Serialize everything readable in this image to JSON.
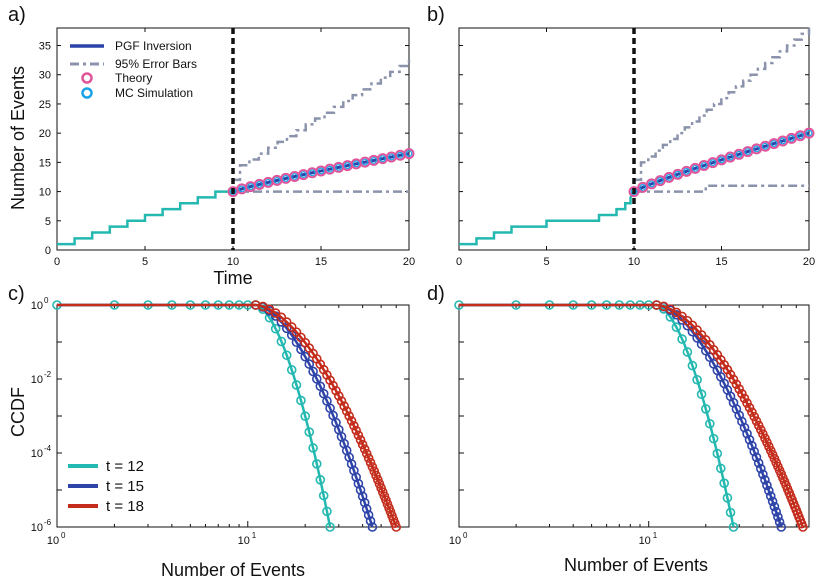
{
  "chart_data": [
    {
      "type": "line",
      "panel": "a)",
      "xlabel": "Time",
      "ylabel": "Number of Events",
      "xlim": [
        0,
        20
      ],
      "ylim": [
        0,
        38
      ],
      "xticks": [
        "0",
        "5",
        "10",
        "15",
        "20"
      ],
      "yticks": [
        "0",
        "5",
        "10",
        "15",
        "20",
        "25",
        "30",
        "35"
      ],
      "observation_time": 10,
      "history": {
        "times": [
          1,
          2,
          3,
          4,
          5,
          6,
          7,
          8,
          9
        ],
        "final_count": 10,
        "start": 1
      },
      "theory": {
        "t0": 10,
        "n0": 10,
        "t1": 20,
        "n1": 16.5
      },
      "upper_bar": {
        "start_t": 10,
        "start_n": 12,
        "jump_to": 14.5,
        "end_n": 32
      },
      "lower_bar": {
        "value": 10
      },
      "legend": [
        {
          "label": "PGF Inversion",
          "color": "#2b44a8",
          "style": "solid"
        },
        {
          "label": "95% Error Bars",
          "color": "#8a93ab",
          "style": "dashdot"
        },
        {
          "label": "Theory",
          "color": "#e0559a",
          "style": "circle"
        },
        {
          "label": "MC Simulation",
          "color": "#1aa3e8",
          "style": "circle"
        }
      ]
    },
    {
      "type": "line",
      "panel": "b)",
      "xlabel": "",
      "ylabel": "",
      "xlim": [
        0,
        20
      ],
      "ylim": [
        0,
        38
      ],
      "xticks": [
        "0",
        "5",
        "10",
        "15",
        "20"
      ],
      "observation_time": 10,
      "history": {
        "times": [
          1,
          2,
          3,
          5,
          8,
          9,
          9.5,
          9.8
        ],
        "final_count": 10,
        "start": 1
      },
      "theory": {
        "t0": 10,
        "n0": 10,
        "t1": 20,
        "n1": 20
      },
      "upper_bar": {
        "start_t": 10,
        "start_n": 12,
        "jump_to": 15,
        "end_n": 38
      },
      "lower_bar": {
        "value": 10,
        "jump_t": 14.1,
        "jump_to": 11
      }
    },
    {
      "type": "line",
      "panel": "c)",
      "scale": "log-log",
      "xlabel": "Number of Events",
      "ylabel": "CCDF",
      "xlim": [
        1,
        70
      ],
      "ylim": [
        1e-06,
        1
      ],
      "xticks": [
        {
          "base": "10",
          "exp": "0"
        },
        {
          "base": "10",
          "exp": "1"
        }
      ],
      "yticks": [
        {
          "base": "10",
          "exp": "0"
        },
        {
          "base": "10",
          "exp": "-2"
        },
        {
          "base": "10",
          "exp": "-4"
        },
        {
          "base": "10",
          "exp": "-6"
        }
      ],
      "series": [
        {
          "name": "t = 12",
          "color": "#23b8b0",
          "knee": 11,
          "end_x": 27
        },
        {
          "name": "t = 15",
          "color": "#2e44a8",
          "knee": 11,
          "end_x": 45
        },
        {
          "name": "t = 18",
          "color": "#c42c1c",
          "knee": 11,
          "end_x": 60
        }
      ]
    },
    {
      "type": "line",
      "panel": "d)",
      "scale": "log-log",
      "xlabel": "Number of Events",
      "ylabel": "",
      "xlim": [
        1,
        70
      ],
      "ylim": [
        1e-06,
        1
      ],
      "xticks": [
        {
          "base": "10",
          "exp": "0"
        },
        {
          "base": "10",
          "exp": "1"
        }
      ],
      "series": [
        {
          "name": "t = 12",
          "color": "#23b8b0",
          "knee": 11,
          "end_x": 28
        },
        {
          "name": "t = 15",
          "color": "#2e44a8",
          "knee": 11,
          "end_x": 50
        },
        {
          "name": "t = 18",
          "color": "#c42c1c",
          "knee": 11,
          "end_x": 65
        }
      ]
    }
  ],
  "colors": {
    "history": "#23b8b0",
    "pgf": "#2b44a8",
    "errorbar": "#8a93ab",
    "theory": "#e0559a",
    "mc": "#1aa3e8",
    "obs_line": "#111111"
  }
}
